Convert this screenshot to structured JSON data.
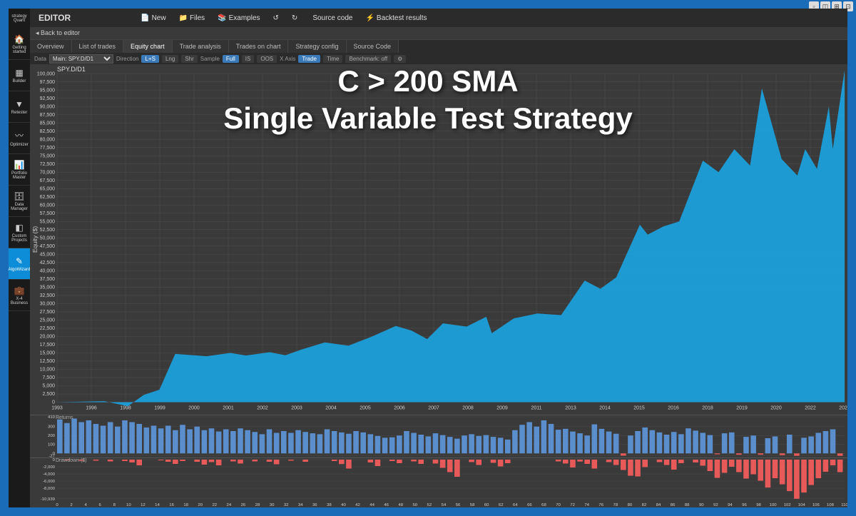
{
  "app_logo": "strategy Quant",
  "overlay": {
    "line1": "C > 200 SMA",
    "line2": "Single Variable Test Strategy"
  },
  "sidebar": [
    {
      "icon": "🏠",
      "label": "Getting started"
    },
    {
      "icon": "▦",
      "label": "Builder"
    },
    {
      "icon": "▼",
      "label": "Retester"
    },
    {
      "icon": "〰",
      "label": "Optimizer"
    },
    {
      "icon": "📊",
      "label": "Portfolio Master"
    },
    {
      "icon": "🗄",
      "label": "Data Manager"
    },
    {
      "icon": "◧",
      "label": "Custom Projects"
    },
    {
      "icon": "✎",
      "label": "AlgoWizard",
      "active": true
    },
    {
      "icon": "💼",
      "label": "X-4 Business"
    }
  ],
  "topbar": {
    "title": "EDITOR",
    "buttons": [
      {
        "icon": "📄",
        "label": "New"
      },
      {
        "icon": "📁",
        "label": "Files"
      },
      {
        "icon": "📚",
        "label": "Examples"
      },
      {
        "icon": "↺",
        "label": ""
      },
      {
        "icon": "↻",
        "label": ""
      },
      {
        "icon": "</>",
        "label": "Source code"
      },
      {
        "icon": "⚡",
        "label": "Backtest results"
      }
    ]
  },
  "back_button": "◂ Back to editor",
  "tabs": [
    "Overview",
    "List of trades",
    "Equity chart",
    "Trade analysis",
    "Trades on chart",
    "Strategy config",
    "Source Code"
  ],
  "active_tab": 2,
  "filters": {
    "data_label": "Data",
    "data_value": "Main: SPY.D/D1",
    "direction_label": "Direction",
    "direction": [
      {
        "l": "L+S",
        "on": true
      },
      {
        "l": "Lng",
        "on": false
      },
      {
        "l": "Shr",
        "on": false
      }
    ],
    "sample_label": "Sample",
    "sample": [
      {
        "l": "Full",
        "on": true
      },
      {
        "l": "IS",
        "on": false
      },
      {
        "l": "OOS",
        "on": false
      }
    ],
    "xaxis_label": "X Axis",
    "xaxis": [
      {
        "l": "Trade",
        "on": true
      },
      {
        "l": "Time",
        "on": false
      }
    ],
    "benchmark": "Benchmark: off"
  },
  "equity": {
    "title": "SPY.D/D1",
    "ylabel": "Equity ($)",
    "y_min": 0,
    "y_max": 100000,
    "y_step": 2500,
    "y_ticks": [
      0,
      2500,
      5000,
      7500,
      10000,
      12500,
      15000,
      17500,
      20000,
      22500,
      25000,
      27500,
      30000,
      32500,
      35000,
      37500,
      40000,
      42500,
      45000,
      47500,
      50000,
      52500,
      55000,
      57500,
      60000,
      62500,
      65000,
      67500,
      70000,
      72500,
      75000,
      77500,
      80000,
      82500,
      85000,
      87500,
      90000,
      92500,
      95000,
      97500,
      100000
    ],
    "x_labels": [
      "1993",
      "1996",
      "1998",
      "1999",
      "2000",
      "2001",
      "2002",
      "2003",
      "2004",
      "2005",
      "2006",
      "2007",
      "2008",
      "2009",
      "2011",
      "2013",
      "2014",
      "2015",
      "2016",
      "2018",
      "2019",
      "2020",
      "2022",
      "2023"
    ],
    "fill_color": "#1ba3e0",
    "grid_color": "#555555",
    "bg_color": "#3a3a3a",
    "series": [
      {
        "x": 0,
        "y": 0
      },
      {
        "x": 0.06,
        "y": 300
      },
      {
        "x": 0.09,
        "y": -1200
      },
      {
        "x": 0.11,
        "y": 2200
      },
      {
        "x": 0.13,
        "y": 3800
      },
      {
        "x": 0.15,
        "y": 14700
      },
      {
        "x": 0.19,
        "y": 14000
      },
      {
        "x": 0.22,
        "y": 15000
      },
      {
        "x": 0.24,
        "y": 14200
      },
      {
        "x": 0.27,
        "y": 15200
      },
      {
        "x": 0.29,
        "y": 14300
      },
      {
        "x": 0.31,
        "y": 16000
      },
      {
        "x": 0.34,
        "y": 18200
      },
      {
        "x": 0.37,
        "y": 17200
      },
      {
        "x": 0.4,
        "y": 20000
      },
      {
        "x": 0.43,
        "y": 23200
      },
      {
        "x": 0.45,
        "y": 21800
      },
      {
        "x": 0.47,
        "y": 19200
      },
      {
        "x": 0.49,
        "y": 24000
      },
      {
        "x": 0.52,
        "y": 23000
      },
      {
        "x": 0.545,
        "y": 26000
      },
      {
        "x": 0.552,
        "y": 21000
      },
      {
        "x": 0.58,
        "y": 25500
      },
      {
        "x": 0.61,
        "y": 27000
      },
      {
        "x": 0.64,
        "y": 26500
      },
      {
        "x": 0.67,
        "y": 37000
      },
      {
        "x": 0.69,
        "y": 34500
      },
      {
        "x": 0.71,
        "y": 38000
      },
      {
        "x": 0.74,
        "y": 54000
      },
      {
        "x": 0.75,
        "y": 51000
      },
      {
        "x": 0.77,
        "y": 53500
      },
      {
        "x": 0.79,
        "y": 55000
      },
      {
        "x": 0.82,
        "y": 73500
      },
      {
        "x": 0.84,
        "y": 70000
      },
      {
        "x": 0.86,
        "y": 77000
      },
      {
        "x": 0.88,
        "y": 72000
      },
      {
        "x": 0.895,
        "y": 95500
      },
      {
        "x": 0.92,
        "y": 74000
      },
      {
        "x": 0.94,
        "y": 69000
      },
      {
        "x": 0.95,
        "y": 77000
      },
      {
        "x": 0.965,
        "y": 71000
      },
      {
        "x": 0.98,
        "y": 90000
      },
      {
        "x": 0.985,
        "y": 77000
      },
      {
        "x": 1.0,
        "y": 101000
      }
    ]
  },
  "returns": {
    "label": "Returns",
    "y_ticks": [
      -27,
      0,
      100,
      200,
      300,
      410
    ],
    "y_min": -30,
    "y_max": 410,
    "color_pos": "#5a8ecc",
    "color_neg": "#e85a5a",
    "values": [
      380,
      340,
      390,
      350,
      370,
      330,
      310,
      350,
      300,
      370,
      350,
      330,
      290,
      310,
      280,
      310,
      260,
      320,
      270,
      300,
      260,
      280,
      245,
      270,
      250,
      280,
      260,
      240,
      215,
      270,
      230,
      250,
      230,
      260,
      240,
      225,
      215,
      270,
      250,
      235,
      220,
      250,
      235,
      215,
      195,
      175,
      180,
      200,
      250,
      230,
      210,
      190,
      225,
      205,
      185,
      165,
      200,
      215,
      195,
      205,
      185,
      175,
      155,
      260,
      320,
      350,
      300,
      370,
      330,
      265,
      275,
      245,
      225,
      200,
      325,
      275,
      245,
      220,
      -25,
      200,
      250,
      290,
      260,
      235,
      210,
      240,
      215,
      280,
      255,
      230,
      205,
      -10,
      225,
      235,
      -15,
      185,
      200,
      -15,
      170,
      190,
      -20,
      210,
      -27,
      175,
      190,
      230,
      250,
      270,
      -27
    ]
  },
  "drawdown": {
    "label": "Drawdown ($)",
    "y_ticks": [
      -10939,
      -8000,
      -6000,
      -4000,
      -2000,
      0
    ],
    "y_min": -11000,
    "y_max": 0,
    "color": "#e85a5a",
    "x_ticks": [
      0,
      2,
      4,
      6,
      8,
      10,
      12,
      14,
      16,
      18,
      20,
      22,
      24,
      26,
      28,
      30,
      32,
      34,
      36,
      38,
      40,
      42,
      44,
      46,
      48,
      50,
      52,
      54,
      56,
      58,
      60,
      62,
      64,
      66,
      68,
      70,
      72,
      74,
      76,
      78,
      80,
      82,
      84,
      86,
      88,
      90,
      92,
      94,
      96,
      98,
      100,
      102,
      104,
      106,
      108,
      110
    ],
    "values": [
      0,
      -200,
      0,
      -300,
      0,
      -300,
      0,
      -500,
      0,
      -400,
      -800,
      -1600,
      0,
      0,
      -200,
      -600,
      -1200,
      -400,
      0,
      -600,
      -1400,
      -700,
      -1600,
      0,
      -500,
      -1100,
      0,
      -500,
      0,
      -600,
      -1300,
      0,
      -300,
      0,
      -600,
      0,
      0,
      0,
      -400,
      -1250,
      -2500,
      0,
      0,
      -800,
      -1800,
      0,
      -400,
      -1000,
      0,
      -500,
      -1200,
      0,
      -1100,
      -2300,
      -3500,
      -4800,
      0,
      -700,
      -1500,
      0,
      -900,
      -1900,
      -1000,
      0,
      0,
      0,
      0,
      0,
      0,
      -500,
      -1100,
      -2200,
      -550,
      -1200,
      -2500,
      0,
      -700,
      -1500,
      -2900,
      -4500,
      -4700,
      -2100,
      0,
      -700,
      -1500,
      -2800,
      -1000,
      0,
      -800,
      -1700,
      -3200,
      -5100,
      -3700,
      -2000,
      -3500,
      -5300,
      -4100,
      -5900,
      -7800,
      -5200,
      -6900,
      -8800,
      -10939,
      -9200,
      -7100,
      -5200,
      -3400,
      -1600,
      -3500
    ]
  }
}
